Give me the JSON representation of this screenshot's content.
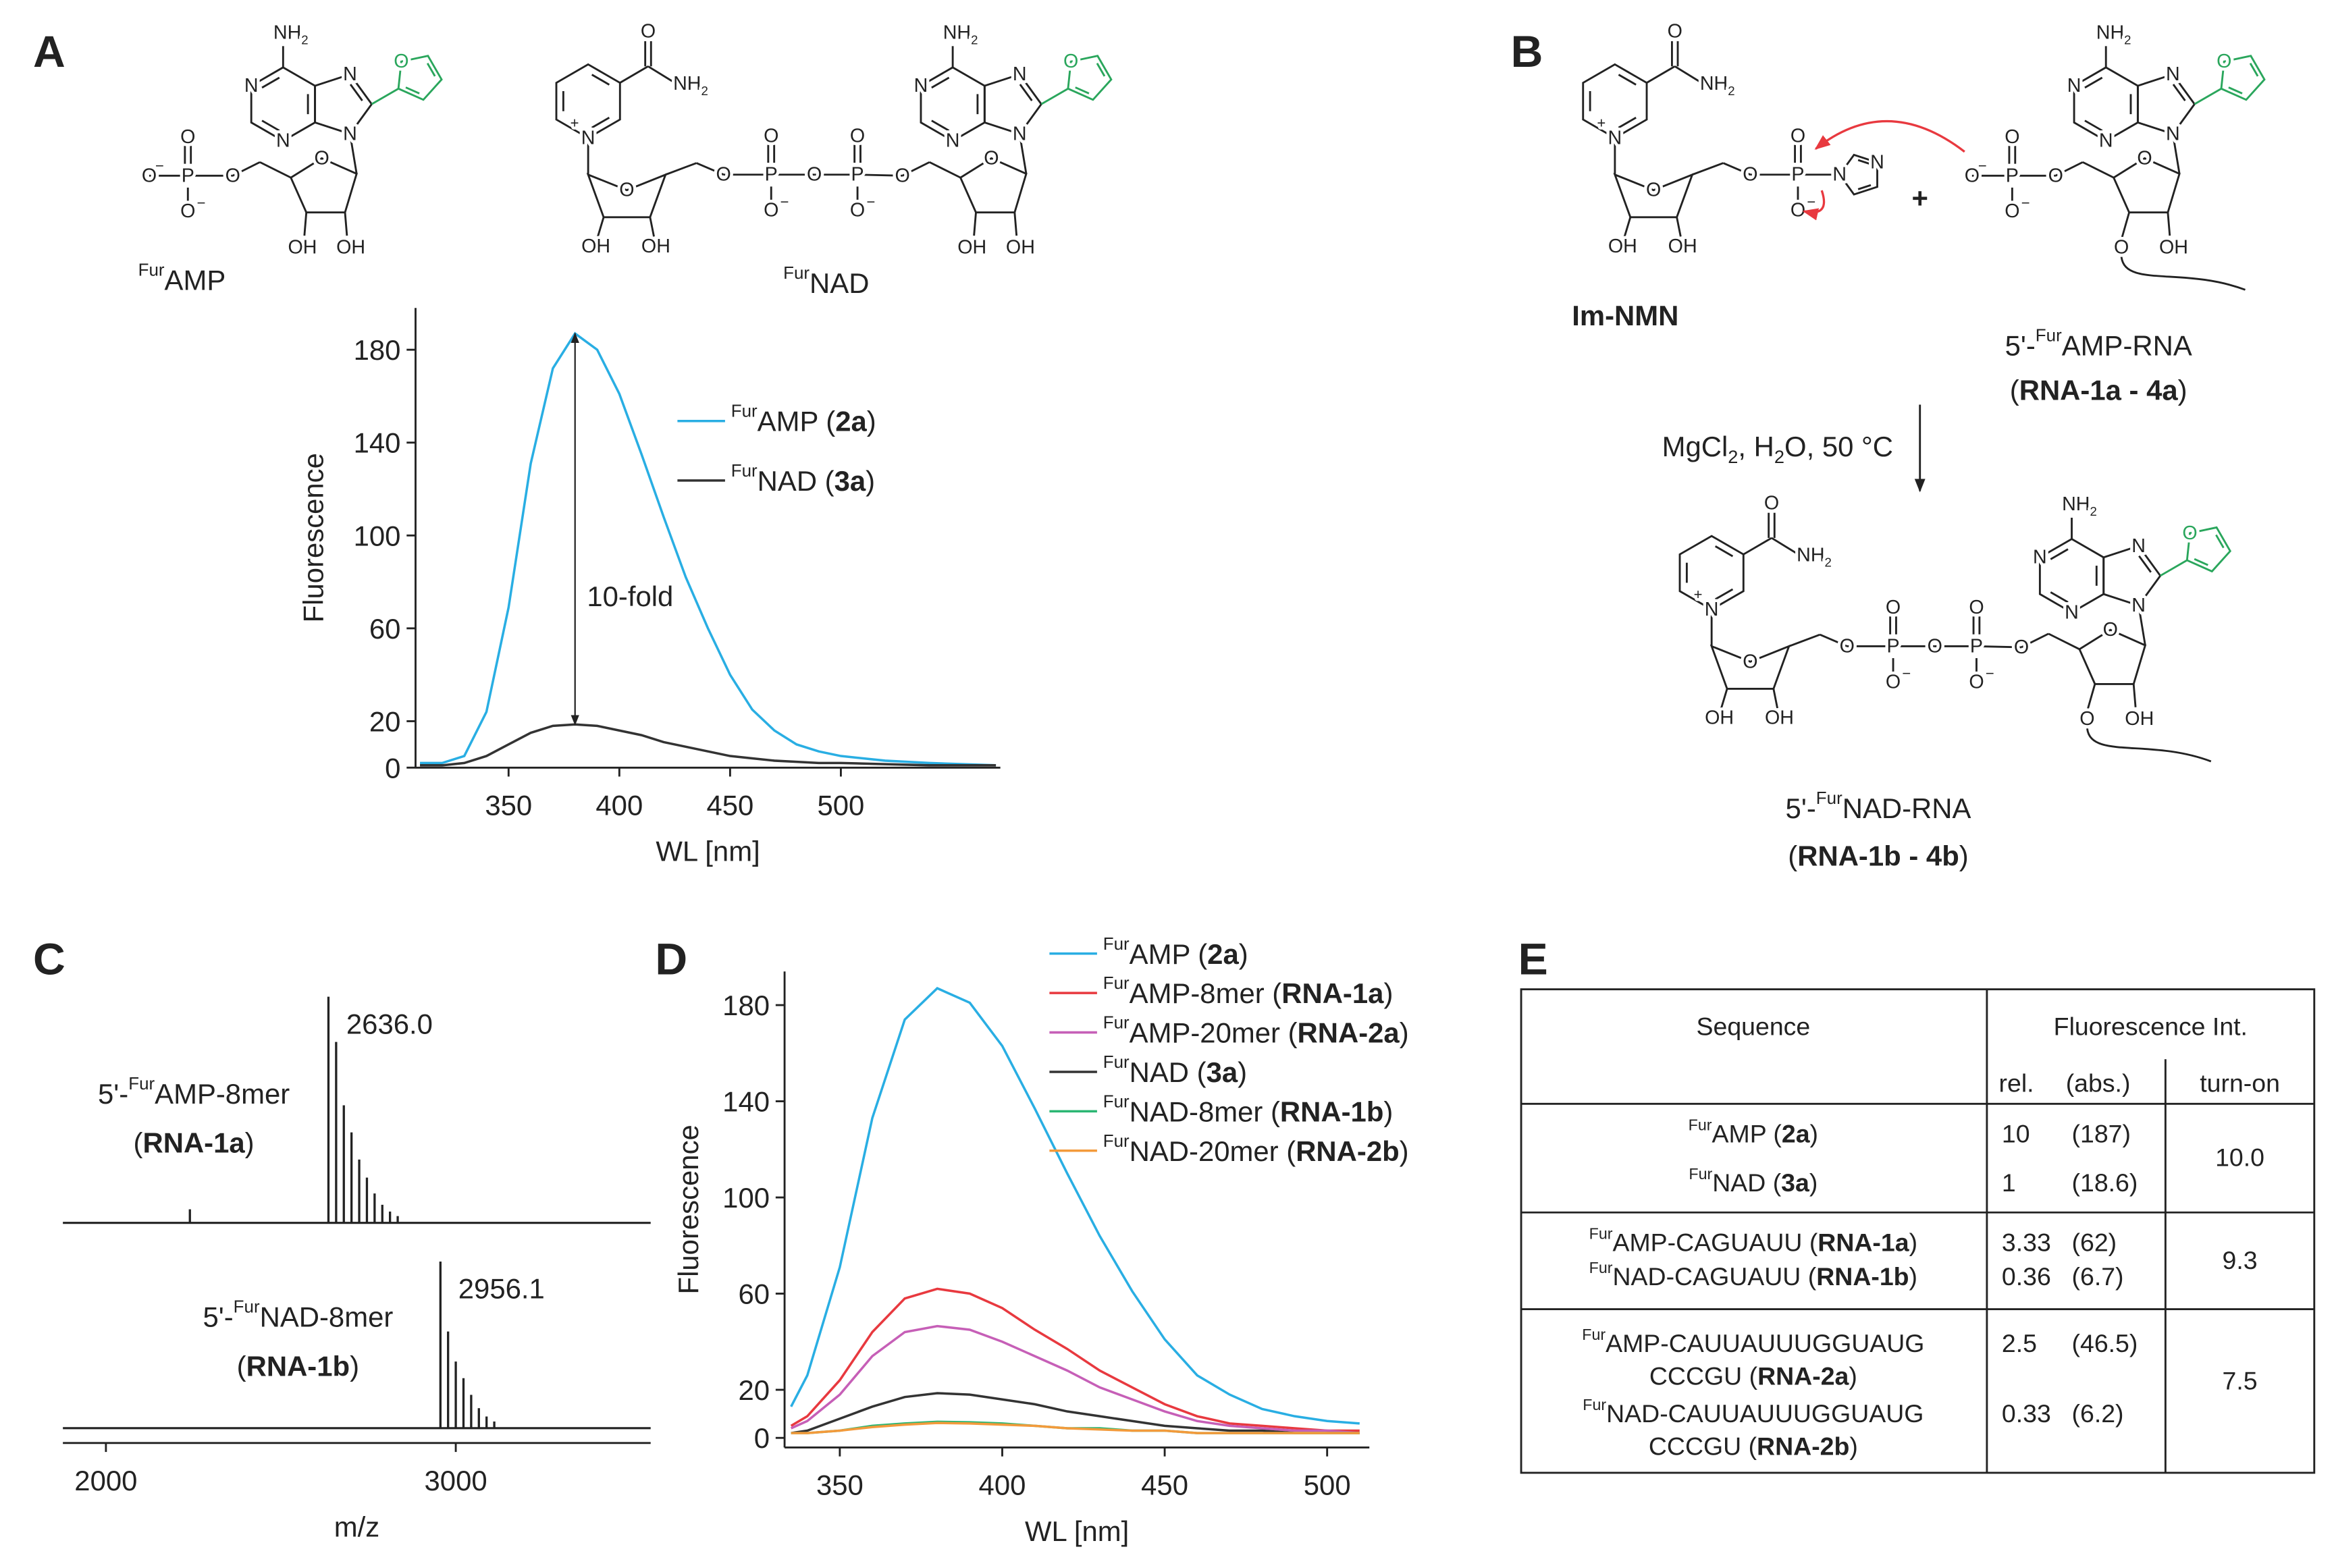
{
  "panels": [
    "A",
    "B",
    "C",
    "D",
    "E"
  ],
  "atoms": {
    "nh2": "NH2",
    "n": "N",
    "o": "O",
    "oh": "OH",
    "p": "P",
    "plus": "+",
    "minus": "−"
  },
  "schemes": {
    "a": {
      "amp": "FurAMP",
      "nad": "FurNAD"
    },
    "b": {
      "im_nmn": "Im-NMN",
      "plus": "+",
      "amp_rna": "5'-FurAMP-RNA",
      "amp_rna_ids": "(RNA-1a - 4a)",
      "conditions": "MgCl2, H2O, 50 °C",
      "nad_rna": "5'-FurNAD-RNA",
      "nad_rna_ids": "(RNA-1b - 4b)"
    }
  },
  "chart_data": [
    {
      "type": "line",
      "xlabel": "WL [nm]",
      "ylabel": "Fluorescence",
      "annotation": "10-fold",
      "x": [
        310,
        320,
        330,
        340,
        350,
        360,
        370,
        380,
        390,
        400,
        410,
        420,
        430,
        440,
        450,
        460,
        470,
        480,
        490,
        500,
        520,
        540,
        570
      ],
      "series": [
        {
          "name": "FurAMP (2a)",
          "color": "#29aee3",
          "values": [
            2,
            2,
            5,
            24,
            69,
            131,
            172,
            187,
            180,
            161,
            135,
            108,
            82,
            60,
            40,
            25,
            16,
            10,
            7,
            5,
            3,
            2,
            1
          ]
        },
        {
          "name": "FurNAD (3a)",
          "color": "#333333",
          "values": [
            1,
            1,
            2,
            5,
            10,
            15,
            18,
            18.6,
            18,
            16,
            14,
            11,
            9,
            7,
            5,
            4,
            3,
            2.5,
            2,
            2,
            1.5,
            1,
            1
          ]
        }
      ],
      "xlim": [
        308,
        572
      ],
      "ylim": [
        0,
        198
      ],
      "xticks": [
        350,
        400,
        450,
        500
      ],
      "yticks": [
        0,
        20,
        60,
        100,
        140,
        180
      ]
    },
    {
      "type": "spectrum",
      "xlabel": "m/z",
      "xlim": [
        1877,
        3557
      ],
      "xticks": [
        2000,
        3000
      ],
      "ylim": [
        0,
        100
      ],
      "series": [
        {
          "name": [
            "5'-FurAMP-8mer",
            "(RNA-1a)"
          ],
          "color": "#222222",
          "x": [
            2240,
            2636,
            2658,
            2680,
            2702,
            2724,
            2746,
            2768,
            2790,
            2812,
            2834
          ],
          "values": [
            6,
            100,
            80,
            52,
            40,
            28,
            20,
            13,
            8,
            5,
            3
          ],
          "peak": {
            "value": 2636,
            "label": "2636.0"
          }
        },
        {
          "name": [
            "5'-FurNAD-8mer",
            "(RNA-1b)"
          ],
          "color": "#222222",
          "x": [
            2956.1,
            2978,
            3000,
            3022,
            3044,
            3066,
            3088,
            3110
          ],
          "values": [
            100,
            58,
            40,
            30,
            20,
            12,
            7,
            4
          ],
          "peak": 2956.1
        }
      ]
    },
    {
      "type": "line",
      "xlabel": "WL [nm]",
      "ylabel": "Fluorescence",
      "x": [
        335,
        340,
        350,
        360,
        370,
        380,
        390,
        400,
        410,
        420,
        430,
        440,
        450,
        460,
        470,
        480,
        490,
        500,
        510
      ],
      "series": [
        {
          "name": "FurAMP (2a)",
          "color": "#29aee3",
          "values": [
            13,
            26,
            71,
            133,
            174,
            187,
            181,
            163,
            137,
            110,
            84,
            61,
            41,
            26,
            18,
            12,
            9,
            7,
            6
          ]
        },
        {
          "name": "FurAMP-8mer (RNA-1a)",
          "color": "#e8393f",
          "values": [
            5,
            9,
            24,
            44,
            58,
            62,
            60,
            54,
            45,
            37,
            28,
            21,
            14,
            9,
            6,
            5,
            4,
            3,
            3
          ]
        },
        {
          "name": "FurAMP-20mer (RNA-2a)",
          "color": "#c65fb7",
          "values": [
            4,
            7,
            18,
            34,
            44,
            46.5,
            45,
            40,
            34,
            28,
            21,
            16,
            11,
            7,
            5,
            4,
            3,
            3,
            2
          ]
        },
        {
          "name": "FurNAD (3a)",
          "color": "#333333",
          "values": [
            2,
            3,
            8,
            13,
            17,
            18.6,
            18,
            16,
            14,
            11,
            9,
            7,
            5,
            4,
            3,
            3,
            2,
            2,
            2
          ]
        },
        {
          "name": "FurNAD-8mer (RNA-1b)",
          "color": "#2bb673",
          "values": [
            2,
            2,
            3,
            5,
            6,
            6.7,
            6.5,
            6,
            5,
            4,
            4,
            3,
            3,
            2,
            2,
            2,
            2,
            2,
            2
          ]
        },
        {
          "name": "FurNAD-20mer (RNA-2b)",
          "color": "#f39a3b",
          "values": [
            2,
            2,
            3,
            4.5,
            5.5,
            6.2,
            6,
            5.5,
            5,
            4,
            3.5,
            3,
            3,
            2,
            2,
            2,
            2,
            2,
            2
          ]
        }
      ],
      "xlim": [
        333,
        513
      ],
      "ylim": [
        -4,
        194
      ],
      "xticks": [
        350,
        400,
        450,
        500
      ],
      "yticks": [
        0,
        20,
        60,
        100,
        140,
        180
      ]
    }
  ],
  "table": {
    "header": {
      "sequence": "Sequence",
      "fluorescence": "Fluorescence Int.",
      "rel": "rel.",
      "abs": "(abs.)",
      "turn_on": "turn-on"
    },
    "groups": [
      {
        "rows": [
          {
            "sequence": [
              "FurAMP (2a)"
            ],
            "rel": "10",
            "abs": "(187)"
          },
          {
            "sequence": [
              "FurNAD (3a)"
            ],
            "rel": "1",
            "abs": "(18.6)"
          }
        ],
        "turn_on": "10.0"
      },
      {
        "rows": [
          {
            "sequence": [
              "FurAMP-CAGUAUU (RNA-1a)"
            ],
            "rel": "3.33",
            "abs": "(62)"
          },
          {
            "sequence": [
              "FurNAD-CAGUAUU (RNA-1b)"
            ],
            "rel": "0.36",
            "abs": "(6.7)"
          }
        ],
        "turn_on": "9.3"
      },
      {
        "rows": [
          {
            "sequence": [
              "FurAMP-CAUUAUUUGGUAUG",
              "CCCGU (RNA-2a)"
            ],
            "rel": "2.5",
            "abs": "(46.5)"
          },
          {
            "sequence": [
              "FurNAD-CAUUAUUUGGUAUG",
              "CCCGU (RNA-2b)"
            ],
            "rel": "0.33",
            "abs": "(6.2)"
          }
        ],
        "turn_on": "7.5"
      }
    ]
  }
}
